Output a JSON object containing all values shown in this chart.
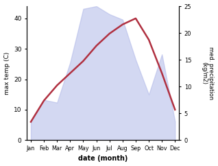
{
  "months": [
    "Jan",
    "Feb",
    "Mar",
    "Apr",
    "May",
    "Jun",
    "Jul",
    "Aug",
    "Sep",
    "Oct",
    "Nov",
    "Dec"
  ],
  "month_positions": [
    0,
    1,
    2,
    3,
    4,
    5,
    6,
    7,
    8,
    9,
    10,
    11
  ],
  "temp_data": [
    6,
    13,
    18,
    22,
    26,
    31,
    35,
    38,
    40,
    33,
    22,
    10
  ],
  "precip_data": [
    3.5,
    7.5,
    7.0,
    14.5,
    24.5,
    25.0,
    23.5,
    22.5,
    15.0,
    8.5,
    16.0,
    3.5
  ],
  "temp_ylim": [
    0,
    44
  ],
  "precip_ylim": [
    0,
    25
  ],
  "temp_yticks": [
    0,
    10,
    20,
    30,
    40
  ],
  "precip_yticks": [
    0,
    5,
    10,
    15,
    20,
    25
  ],
  "left_ylabel": "max temp (C)",
  "right_ylabel": "med. precipitation\n(kg/m2)",
  "xlabel": "date (month)",
  "fill_color": "#b0b8e8",
  "fill_alpha": 0.55,
  "line_color": "#b03040",
  "line_width": 1.8,
  "bg_color": "#ffffff"
}
